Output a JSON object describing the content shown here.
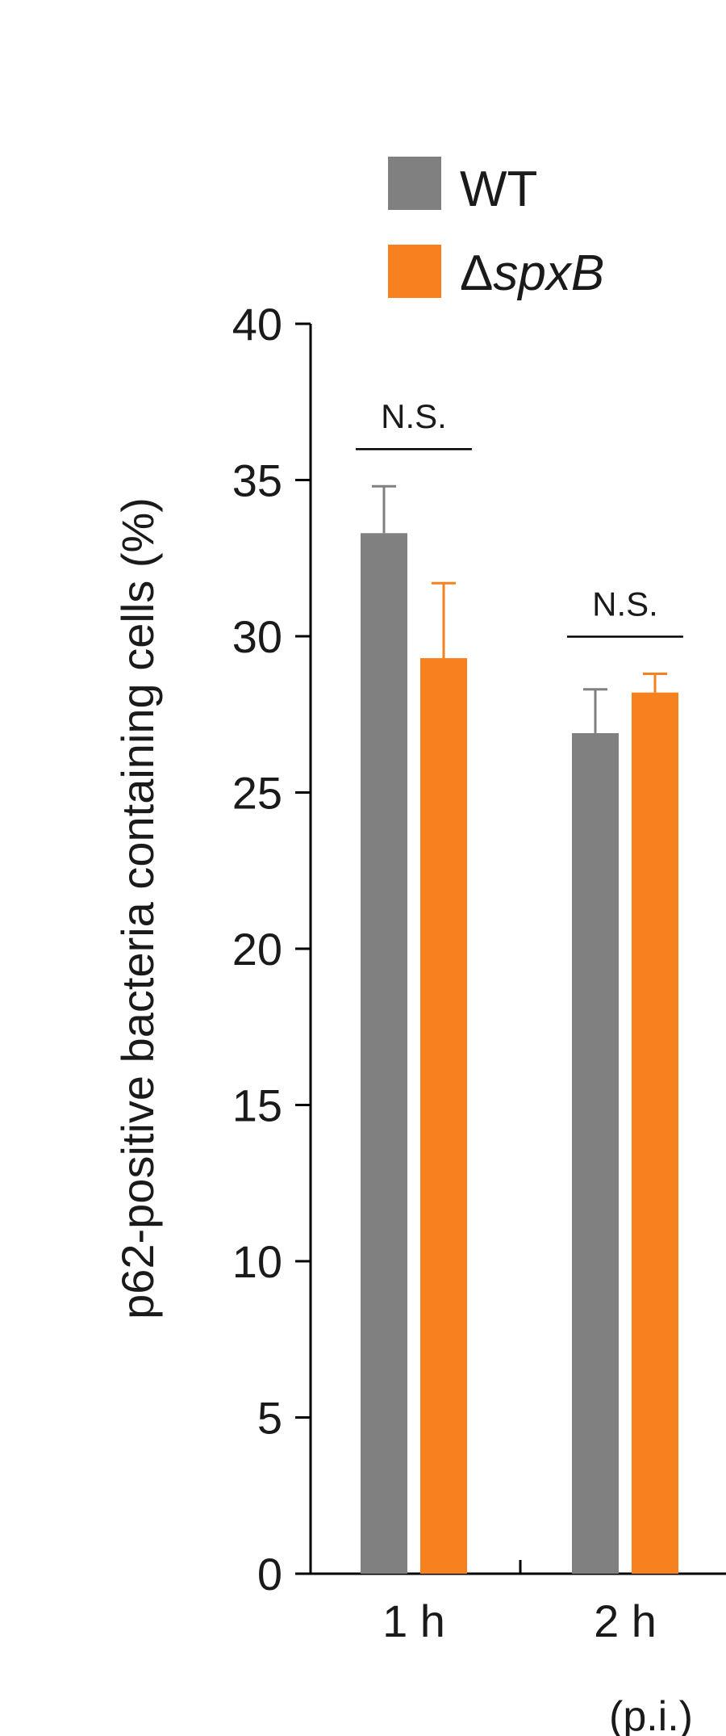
{
  "chart_data": {
    "type": "bar",
    "ylabel": "p62-positive bacteria containing cells (%)",
    "xlabel": "",
    "x_unit_note": "(p.i.)",
    "categories": [
      "1 h",
      "2 h"
    ],
    "series": [
      {
        "name": "WT",
        "values": [
          33.3,
          26.9
        ],
        "errors": [
          1.5,
          1.4
        ]
      },
      {
        "name": "ΔspxB",
        "values": [
          29.3,
          28.2
        ],
        "errors": [
          2.4,
          0.6
        ]
      }
    ],
    "significance": [
      "N.S.",
      "N.S."
    ],
    "ylim": [
      0,
      40
    ],
    "yticks": [
      0,
      5,
      10,
      15,
      20,
      25,
      30,
      35,
      40
    ],
    "grid": false,
    "legend_position": "top-left"
  },
  "colors": {
    "WT": "#808080",
    "ΔspxB": "#f7801f",
    "axis": "#000000"
  }
}
